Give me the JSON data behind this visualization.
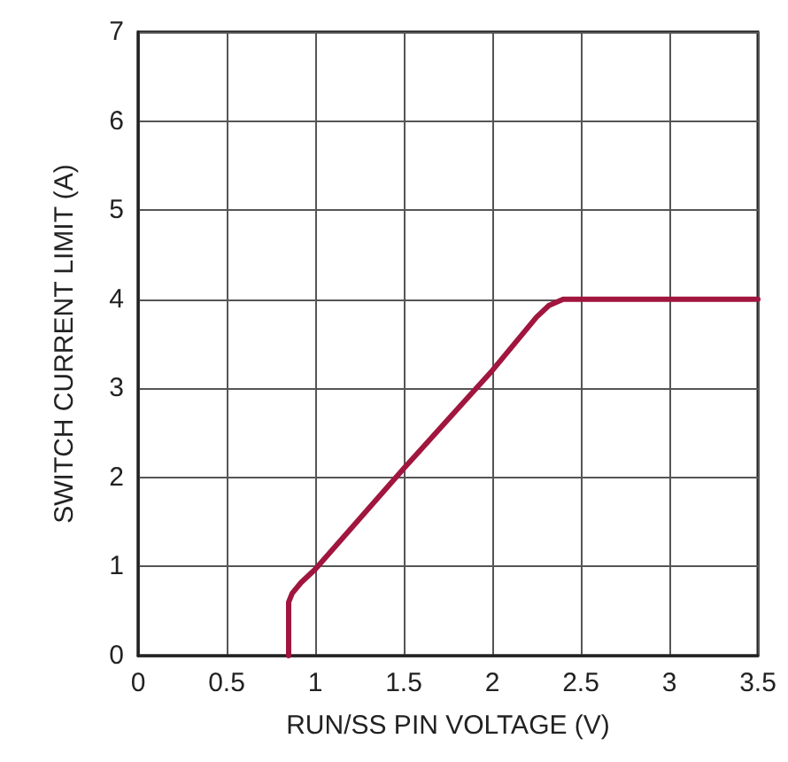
{
  "chart_data": {
    "type": "line",
    "xlabel": "RUN/SS PIN VOLTAGE (V)",
    "ylabel": "SWITCH CURRENT LIMIT (A)",
    "x": [
      0.85,
      0.85,
      0.87,
      0.92,
      1.0,
      1.5,
      2.0,
      2.25,
      2.32,
      2.4,
      3.5
    ],
    "series": [
      {
        "color": "#a0163f",
        "values": [
          0,
          0.6,
          0.7,
          0.82,
          0.97,
          2.1,
          3.2,
          3.8,
          3.93,
          4.0,
          4.0
        ]
      }
    ],
    "xlim": [
      0,
      3.5
    ],
    "xticks": [
      0,
      0.5,
      1,
      1.5,
      2,
      2.5,
      3,
      3.5
    ],
    "ylim": [
      0,
      7
    ],
    "yticks": [
      0,
      1,
      2,
      3,
      4,
      5,
      6,
      7
    ],
    "grid": true,
    "marker": "none",
    "line_style": "solid"
  }
}
